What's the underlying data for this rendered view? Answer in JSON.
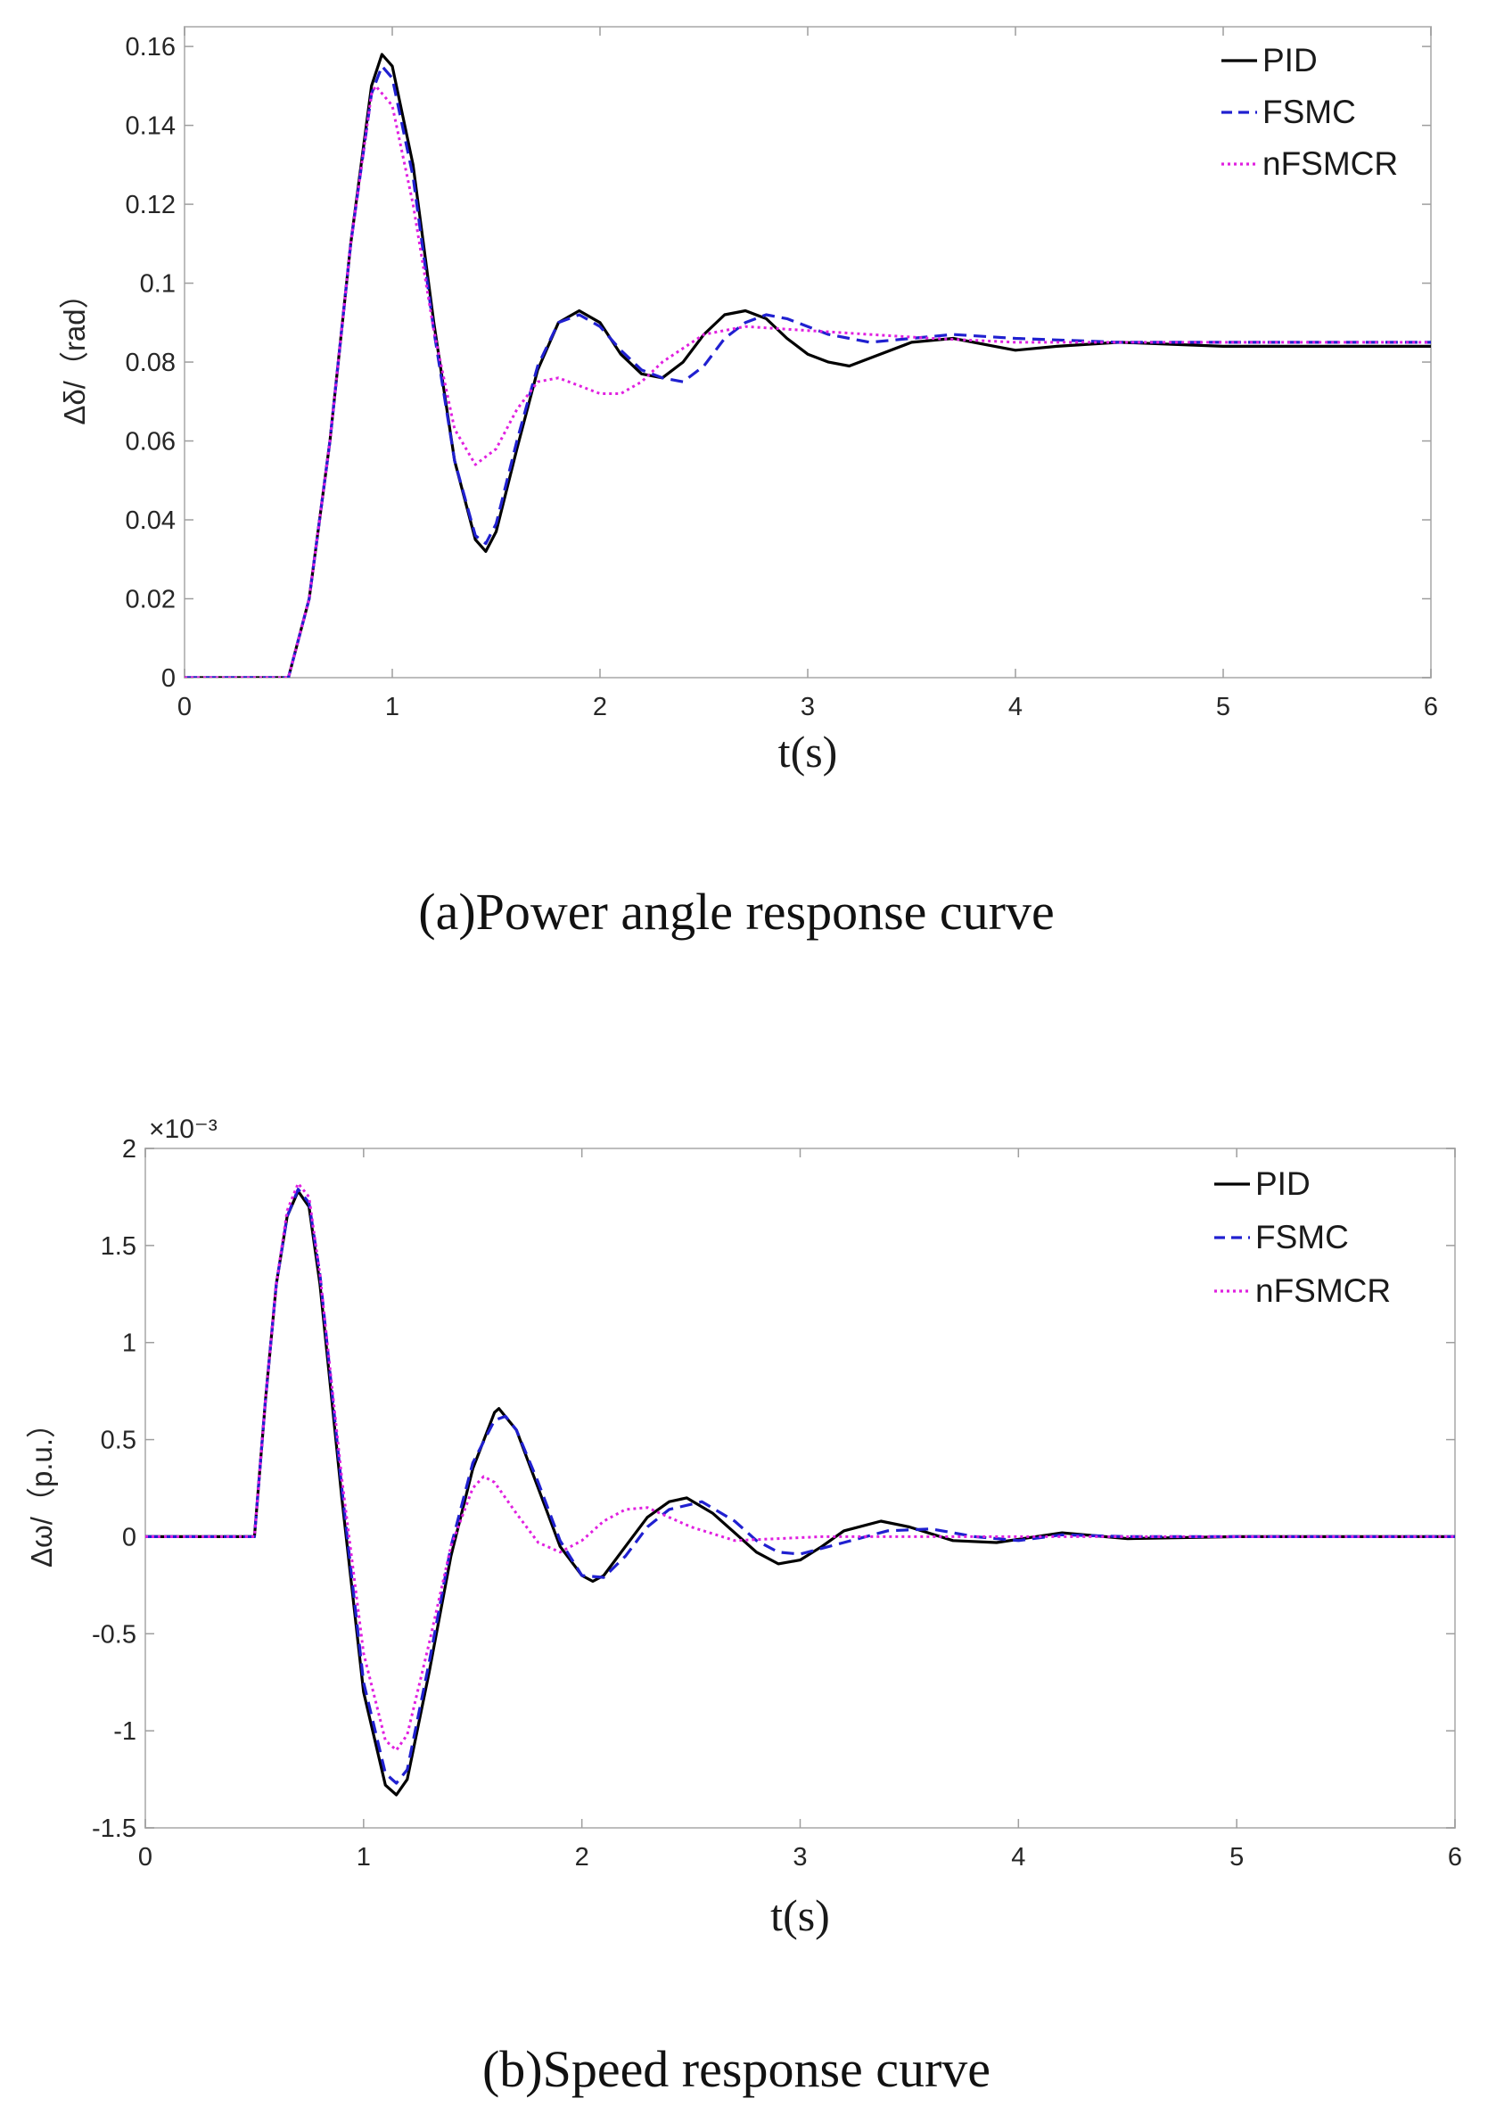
{
  "chart_data": [
    {
      "type": "line",
      "caption": "(a)Power angle response curve",
      "xlabel": "t(s)",
      "ylabel": "Δδ/（rad）",
      "xlim": [
        0,
        6
      ],
      "ylim": [
        0,
        0.165
      ],
      "xticks": [
        0,
        1,
        2,
        3,
        4,
        5,
        6
      ],
      "xtick_labels": [
        "0",
        "1",
        "2",
        "3",
        "4",
        "5",
        "6"
      ],
      "yticks": [
        0,
        0.02,
        0.04,
        0.06,
        0.08,
        0.1,
        0.12,
        0.14,
        0.16
      ],
      "ytick_labels": [
        "0",
        "0.02",
        "0.04",
        "0.06",
        "0.08",
        "0.1",
        "0.12",
        "0.14",
        "0.16"
      ],
      "grid": false,
      "legend_position": "top-right",
      "series": [
        {
          "name": "PID",
          "color": "#000000",
          "dash": "solid",
          "x": [
            0,
            0.5,
            0.6,
            0.7,
            0.8,
            0.9,
            0.95,
            1.0,
            1.1,
            1.2,
            1.3,
            1.4,
            1.45,
            1.5,
            1.6,
            1.7,
            1.8,
            1.9,
            2.0,
            2.1,
            2.2,
            2.3,
            2.4,
            2.5,
            2.6,
            2.7,
            2.8,
            2.9,
            3.0,
            3.1,
            3.2,
            3.3,
            3.5,
            3.7,
            3.9,
            4.0,
            4.2,
            4.5,
            5.0,
            5.5,
            6.0
          ],
          "y": [
            0,
            0,
            0.02,
            0.06,
            0.11,
            0.15,
            0.158,
            0.155,
            0.13,
            0.09,
            0.055,
            0.035,
            0.032,
            0.037,
            0.058,
            0.078,
            0.09,
            0.093,
            0.09,
            0.082,
            0.077,
            0.076,
            0.08,
            0.087,
            0.092,
            0.093,
            0.091,
            0.086,
            0.082,
            0.08,
            0.079,
            0.081,
            0.085,
            0.086,
            0.084,
            0.083,
            0.084,
            0.085,
            0.084,
            0.084,
            0.084
          ]
        },
        {
          "name": "FSMC",
          "color": "#2020d0",
          "dash": "dashed",
          "x": [
            0,
            0.5,
            0.6,
            0.7,
            0.8,
            0.9,
            0.95,
            1.0,
            1.1,
            1.2,
            1.3,
            1.4,
            1.45,
            1.5,
            1.6,
            1.7,
            1.8,
            1.9,
            2.0,
            2.1,
            2.2,
            2.3,
            2.4,
            2.5,
            2.6,
            2.7,
            2.8,
            2.9,
            3.0,
            3.1,
            3.2,
            3.3,
            3.5,
            3.7,
            4.0,
            4.5,
            5.0,
            5.5,
            6.0
          ],
          "y": [
            0,
            0,
            0.02,
            0.06,
            0.11,
            0.148,
            0.155,
            0.152,
            0.127,
            0.088,
            0.055,
            0.036,
            0.034,
            0.039,
            0.06,
            0.079,
            0.09,
            0.092,
            0.089,
            0.083,
            0.078,
            0.076,
            0.075,
            0.079,
            0.086,
            0.09,
            0.092,
            0.091,
            0.089,
            0.087,
            0.086,
            0.085,
            0.086,
            0.087,
            0.086,
            0.085,
            0.085,
            0.085,
            0.085
          ]
        },
        {
          "name": "nFSMCR",
          "color": "#e020e0",
          "dash": "dotted",
          "x": [
            0,
            0.5,
            0.6,
            0.7,
            0.8,
            0.9,
            0.92,
            1.0,
            1.1,
            1.2,
            1.3,
            1.4,
            1.5,
            1.6,
            1.7,
            1.8,
            1.9,
            2.0,
            2.1,
            2.2,
            2.3,
            2.5,
            2.7,
            3.0,
            3.3,
            3.6,
            4.0,
            4.5,
            5.0,
            5.5,
            6.0
          ],
          "y": [
            0,
            0,
            0.02,
            0.06,
            0.11,
            0.148,
            0.15,
            0.145,
            0.12,
            0.088,
            0.063,
            0.054,
            0.058,
            0.068,
            0.075,
            0.076,
            0.074,
            0.072,
            0.072,
            0.075,
            0.08,
            0.087,
            0.089,
            0.088,
            0.087,
            0.086,
            0.085,
            0.085,
            0.085,
            0.085,
            0.085
          ]
        }
      ]
    },
    {
      "type": "line",
      "caption": "(b)Speed response curve",
      "xlabel": "t(s)",
      "ylabel": "Δω/（p.u.）",
      "y_exponent_label": "×10⁻³",
      "xlim": [
        0,
        6
      ],
      "ylim": [
        -1.5,
        2
      ],
      "xticks": [
        0,
        1,
        2,
        3,
        4,
        5,
        6
      ],
      "xtick_labels": [
        "0",
        "1",
        "2",
        "3",
        "4",
        "5",
        "6"
      ],
      "yticks": [
        -1.5,
        -1,
        -0.5,
        0,
        0.5,
        1,
        1.5,
        2
      ],
      "ytick_labels": [
        "-1.5",
        "-1",
        "-0.5",
        "0",
        "0.5",
        "1",
        "1.5",
        "2"
      ],
      "grid": false,
      "legend_position": "top-right",
      "series": [
        {
          "name": "PID",
          "color": "#000000",
          "dash": "solid",
          "x": [
            0,
            0.5,
            0.55,
            0.6,
            0.65,
            0.7,
            0.75,
            0.8,
            0.9,
            1.0,
            1.1,
            1.15,
            1.2,
            1.3,
            1.4,
            1.5,
            1.6,
            1.62,
            1.7,
            1.8,
            1.9,
            2.0,
            2.05,
            2.1,
            2.2,
            2.3,
            2.4,
            2.48,
            2.6,
            2.7,
            2.8,
            2.9,
            3.0,
            3.1,
            3.2,
            3.37,
            3.5,
            3.7,
            3.9,
            4.2,
            4.5,
            5.0,
            5.5,
            6.0
          ],
          "y": [
            0,
            0,
            0.7,
            1.3,
            1.65,
            1.78,
            1.7,
            1.3,
            0.2,
            -0.8,
            -1.28,
            -1.33,
            -1.25,
            -0.7,
            -0.1,
            0.35,
            0.64,
            0.66,
            0.55,
            0.25,
            -0.05,
            -0.2,
            -0.23,
            -0.2,
            -0.05,
            0.1,
            0.18,
            0.2,
            0.12,
            0.02,
            -0.08,
            -0.14,
            -0.12,
            -0.05,
            0.03,
            0.08,
            0.05,
            -0.02,
            -0.03,
            0.02,
            -0.01,
            0,
            0,
            0
          ]
        },
        {
          "name": "FSMC",
          "color": "#2020d0",
          "dash": "dashed",
          "x": [
            0,
            0.5,
            0.55,
            0.6,
            0.65,
            0.7,
            0.75,
            0.8,
            0.9,
            1.0,
            1.1,
            1.15,
            1.2,
            1.3,
            1.4,
            1.5,
            1.6,
            1.65,
            1.7,
            1.8,
            1.9,
            2.0,
            2.1,
            2.2,
            2.3,
            2.4,
            2.55,
            2.7,
            2.8,
            2.9,
            3.0,
            3.2,
            3.4,
            3.6,
            3.8,
            4.0,
            4.2,
            4.5,
            5.0,
            5.5,
            6.0
          ],
          "y": [
            0,
            0,
            0.7,
            1.3,
            1.65,
            1.79,
            1.72,
            1.35,
            0.25,
            -0.75,
            -1.22,
            -1.27,
            -1.2,
            -0.65,
            -0.05,
            0.38,
            0.6,
            0.62,
            0.55,
            0.28,
            -0.02,
            -0.2,
            -0.21,
            -0.1,
            0.05,
            0.14,
            0.18,
            0.08,
            -0.02,
            -0.08,
            -0.09,
            -0.03,
            0.03,
            0.04,
            0.0,
            -0.02,
            0.01,
            0,
            0,
            0,
            0
          ]
        },
        {
          "name": "nFSMCR",
          "color": "#e020e0",
          "dash": "dotted",
          "x": [
            0,
            0.5,
            0.55,
            0.6,
            0.65,
            0.7,
            0.75,
            0.8,
            0.9,
            1.0,
            1.1,
            1.15,
            1.2,
            1.3,
            1.4,
            1.5,
            1.55,
            1.6,
            1.7,
            1.8,
            1.9,
            2.0,
            2.1,
            2.2,
            2.3,
            2.4,
            2.5,
            2.7,
            2.9,
            3.1,
            3.5,
            4.0,
            4.5,
            5.0,
            5.5,
            6.0
          ],
          "y": [
            0,
            0,
            0.7,
            1.3,
            1.68,
            1.82,
            1.75,
            1.35,
            0.3,
            -0.6,
            -1.05,
            -1.1,
            -1.02,
            -0.55,
            -0.05,
            0.25,
            0.31,
            0.28,
            0.12,
            -0.03,
            -0.08,
            -0.02,
            0.08,
            0.14,
            0.15,
            0.1,
            0.05,
            -0.02,
            -0.01,
            0.0,
            0.0,
            0.0,
            0.0,
            0.0,
            0.0,
            0.0
          ]
        }
      ]
    }
  ]
}
